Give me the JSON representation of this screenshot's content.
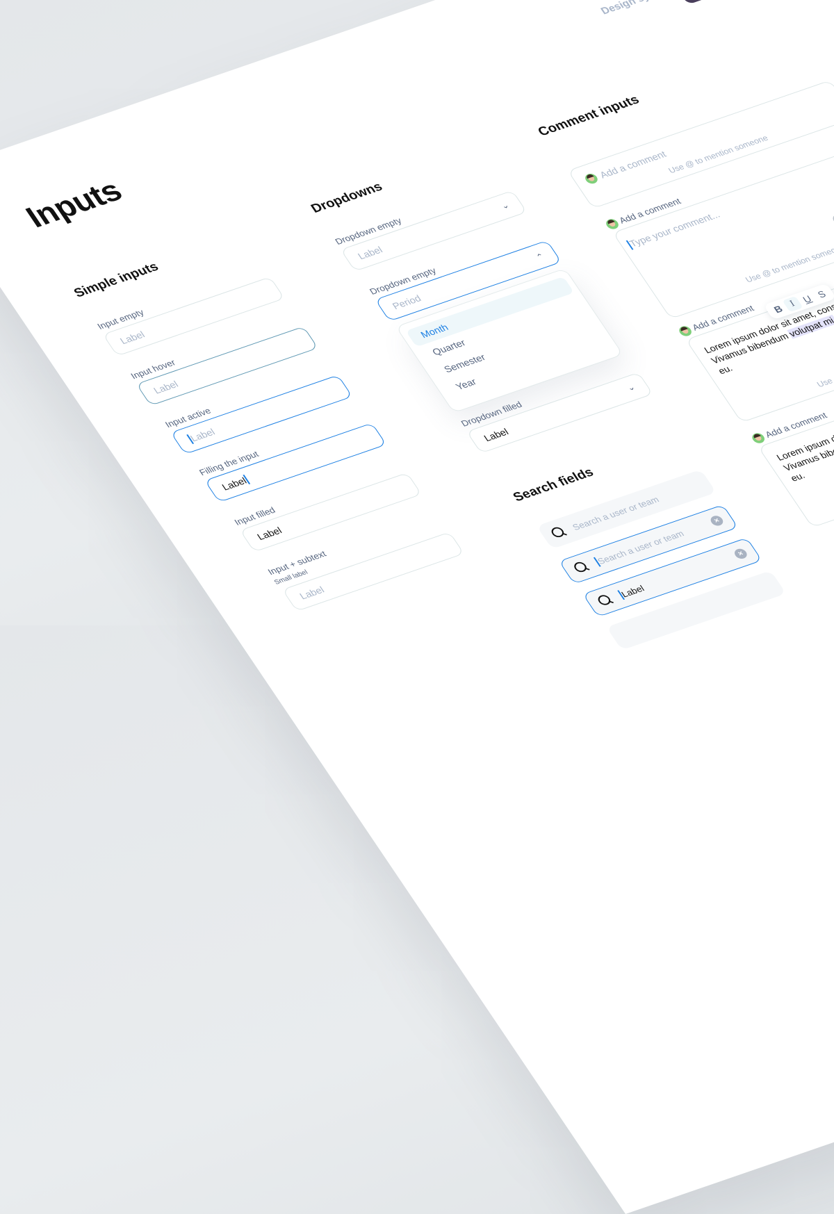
{
  "header": {
    "brand": "Design system"
  },
  "page_title": "Inputs",
  "simple_inputs": {
    "title": "Simple inputs",
    "fields": [
      {
        "label": "Input empty",
        "placeholder": "Label",
        "state": "empty"
      },
      {
        "label": "Input hover",
        "placeholder": "Label",
        "state": "hover"
      },
      {
        "label": "Input active",
        "placeholder": "Label",
        "state": "active"
      },
      {
        "label": "Filling the input",
        "value": "Label",
        "state": "filling"
      },
      {
        "label": "Input filled",
        "value": "Label",
        "state": "filled"
      },
      {
        "label": "Input + subtext",
        "subtext": "Small label",
        "placeholder": "Label",
        "state": "empty"
      }
    ]
  },
  "dropdowns": {
    "title": "Dropdowns",
    "items": [
      {
        "label": "Dropdown empty",
        "placeholder": "Label",
        "state": "closed",
        "icon": "chevron-down-icon"
      },
      {
        "label": "Dropdown empty",
        "placeholder": "Period",
        "state": "open",
        "icon": "chevron-up-icon",
        "options": [
          "Month",
          "Quarter",
          "Semester",
          "Year"
        ],
        "highlighted": "Month"
      },
      {
        "label": "Dropdown filled",
        "value": "Label",
        "state": "filled",
        "icon": "chevron-down-icon"
      }
    ]
  },
  "search_fields": {
    "title": "Search fields",
    "items": [
      {
        "placeholder": "Search a user or team",
        "state": "empty"
      },
      {
        "placeholder": "Search a user or team",
        "state": "active",
        "clear": "×"
      },
      {
        "value": "Label",
        "state": "filled",
        "clear": "×"
      },
      {
        "state": "empty"
      }
    ]
  },
  "comment_inputs": {
    "title": "Comment inputs",
    "collapsed": {
      "placeholder": "Add a comment",
      "hint": "Use @ to mention someone"
    },
    "expanded": {
      "label": "Add a comment",
      "placeholder": "Type your comment...",
      "hint": "Use @ to mention someone"
    },
    "formatting": {
      "label": "Add a comment",
      "lines": [
        "Lorem ipsum dolor sit amet, consectetur",
        "Vivamus bibendum ",
        "eu."
      ],
      "highlight": "volutpat mi,",
      "toolbar": [
        "B",
        "I",
        "U",
        "S"
      ],
      "hint": "Use @ to mention someone"
    },
    "filled": {
      "label": "Add a comment",
      "lines": [
        "Lorem ipsum dolor sit amet, consectetur",
        "Vivamus bibendum volutpat mi,",
        "eu."
      ]
    }
  },
  "colors": {
    "accent": "#1b7fe3",
    "hover_border": "#5e98b3",
    "border": "#dbe5e6",
    "label": "#56657f",
    "placeholder": "#a9b6c9"
  }
}
